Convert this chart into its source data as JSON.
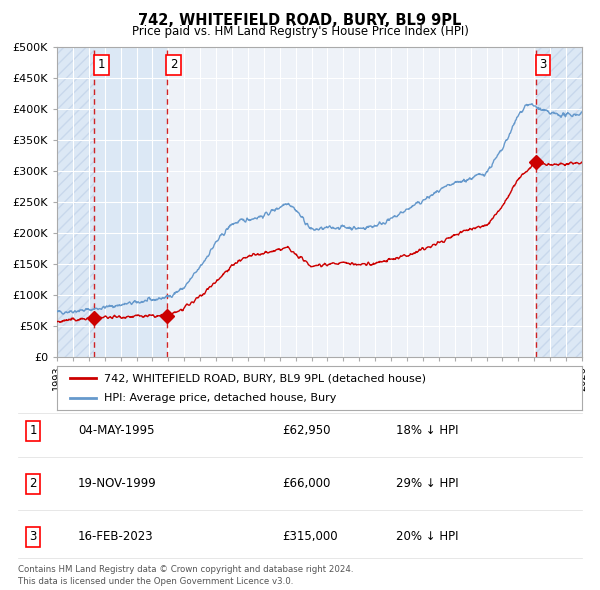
{
  "title": "742, WHITEFIELD ROAD, BURY, BL9 9PL",
  "subtitle": "Price paid vs. HM Land Registry's House Price Index (HPI)",
  "legend_line1": "742, WHITEFIELD ROAD, BURY, BL9 9PL (detached house)",
  "legend_line2": "HPI: Average price, detached house, Bury",
  "transactions": [
    {
      "num": 1,
      "date": "04-MAY-1995",
      "date_val": 1995.35,
      "price": 62950,
      "pct": "18% ↓ HPI"
    },
    {
      "num": 2,
      "date": "19-NOV-1999",
      "date_val": 1999.89,
      "price": 66000,
      "pct": "29% ↓ HPI"
    },
    {
      "num": 3,
      "date": "16-FEB-2023",
      "date_val": 2023.12,
      "price": 315000,
      "pct": "20% ↓ HPI"
    }
  ],
  "hpi_color": "#6699cc",
  "price_color": "#cc0000",
  "bg_color": "#ffffff",
  "plot_bg": "#eef2f8",
  "grid_color": "#ffffff",
  "dashed_line_color": "#cc0000",
  "shade_color": "#dce8f5",
  "hatch_color": "#c8d8ec",
  "xmin": 1993.0,
  "xmax": 2026.0,
  "ymin": 0,
  "ymax": 500000,
  "yticks": [
    0,
    50000,
    100000,
    150000,
    200000,
    250000,
    300000,
    350000,
    400000,
    450000,
    500000
  ],
  "footnote1": "Contains HM Land Registry data © Crown copyright and database right 2024.",
  "footnote2": "This data is licensed under the Open Government Licence v3.0."
}
